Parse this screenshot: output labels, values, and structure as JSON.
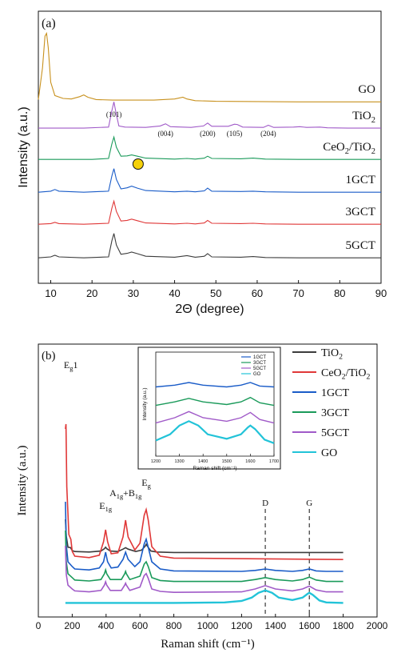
{
  "chart_data": [
    {
      "panel": "(a)",
      "type": "line",
      "xlabel": "2Θ (degree)",
      "ylabel": "Intensity (a.u.)",
      "xlim": [
        7,
        90
      ],
      "xticks": [
        10,
        20,
        30,
        40,
        50,
        60,
        70,
        80,
        90
      ],
      "peak_labels": [
        {
          "text": "(101)",
          "x": 25.3
        },
        {
          "text": "(004)",
          "x": 37.8
        },
        {
          "text": "(200)",
          "x": 48.0
        },
        {
          "text": "(105)",
          "x": 54.5
        },
        {
          "text": "(204)",
          "x": 62.7
        }
      ],
      "marker": {
        "symbol": "circle",
        "color": "#f5d10a",
        "x": 30.0,
        "series": "CeO2/TiO2"
      },
      "series": [
        {
          "name": "GO",
          "label_parts": [
            {
              "t": "GO"
            }
          ],
          "color": "#c8911e",
          "offset": 5,
          "x": [
            7,
            8,
            8.6,
            9,
            9.4,
            10,
            11,
            13,
            15,
            17,
            18,
            19,
            21,
            25,
            30,
            35,
            40,
            42,
            43,
            45,
            50,
            60,
            70,
            80,
            90
          ],
          "y": [
            0.05,
            0.6,
            1.15,
            1.2,
            0.95,
            0.35,
            0.12,
            0.07,
            0.06,
            0.1,
            0.13,
            0.09,
            0.05,
            0.04,
            0.04,
            0.04,
            0.06,
            0.09,
            0.06,
            0.03,
            0.02,
            0.015,
            0.01,
            0.01,
            0.01
          ]
        },
        {
          "name": "TiO2",
          "label_parts": [
            {
              "t": "TiO"
            },
            {
              "t": "2",
              "sub": true
            }
          ],
          "color": "#a05ac8",
          "offset": 4,
          "x": [
            7,
            12,
            18,
            24,
            24.8,
            25.3,
            25.8,
            26.5,
            28,
            33,
            36.5,
            37.8,
            39,
            44,
            47,
            48,
            49,
            53,
            54.5,
            55.2,
            56.5,
            61.5,
            62.7,
            64,
            68.8,
            70.3,
            72,
            75.2,
            77,
            82,
            90
          ],
          "y": [
            0.02,
            0.02,
            0.02,
            0.05,
            0.5,
            0.75,
            0.45,
            0.08,
            0.05,
            0.04,
            0.08,
            0.14,
            0.06,
            0.04,
            0.08,
            0.16,
            0.07,
            0.07,
            0.13,
            0.12,
            0.05,
            0.04,
            0.1,
            0.04,
            0.05,
            0.06,
            0.04,
            0.05,
            0.03,
            0.02,
            0.02
          ]
        },
        {
          "name": "CeO2/TiO2",
          "label_parts": [
            {
              "t": "CeO"
            },
            {
              "t": "2",
              "sub": true
            },
            {
              "t": "/TiO"
            },
            {
              "t": "2",
              "sub": true
            }
          ],
          "color": "#1a9a5a",
          "offset": 3,
          "x": [
            7,
            12,
            20,
            24,
            24.8,
            25.3,
            25.9,
            27,
            28.5,
            29.6,
            31,
            33,
            40,
            43,
            45,
            47.2,
            48,
            49,
            56,
            59,
            62,
            70,
            80,
            90
          ],
          "y": [
            0.02,
            0.02,
            0.02,
            0.05,
            0.5,
            0.72,
            0.4,
            0.12,
            0.13,
            0.16,
            0.12,
            0.06,
            0.03,
            0.05,
            0.03,
            0.06,
            0.12,
            0.05,
            0.04,
            0.06,
            0.03,
            0.02,
            0.02,
            0.02
          ]
        },
        {
          "name": "1GCT",
          "label_parts": [
            {
              "t": "1GCT"
            }
          ],
          "color": "#1a5cc8",
          "offset": 2,
          "x": [
            7,
            10,
            11,
            12,
            18,
            24,
            24.8,
            25.3,
            25.9,
            27,
            28.5,
            29.6,
            31,
            33,
            40,
            43,
            45,
            47.2,
            48,
            49,
            56,
            59,
            62,
            70,
            80,
            90
          ],
          "y": [
            0.02,
            0.05,
            0.1,
            0.05,
            0.02,
            0.05,
            0.5,
            0.72,
            0.4,
            0.12,
            0.15,
            0.2,
            0.14,
            0.07,
            0.03,
            0.05,
            0.03,
            0.06,
            0.14,
            0.05,
            0.04,
            0.05,
            0.03,
            0.02,
            0.02,
            0.02
          ]
        },
        {
          "name": "3GCT",
          "label_parts": [
            {
              "t": "3GCT"
            }
          ],
          "color": "#e03838",
          "offset": 1,
          "x": [
            7,
            10,
            11,
            12,
            18,
            24,
            24.8,
            25.3,
            25.9,
            27,
            28.5,
            29.6,
            31,
            33,
            40,
            43,
            45,
            47.2,
            48,
            49,
            56,
            59,
            62,
            70,
            80,
            90
          ],
          "y": [
            0.02,
            0.04,
            0.08,
            0.04,
            0.02,
            0.05,
            0.52,
            0.74,
            0.42,
            0.12,
            0.14,
            0.18,
            0.13,
            0.06,
            0.03,
            0.05,
            0.03,
            0.06,
            0.14,
            0.05,
            0.04,
            0.05,
            0.03,
            0.02,
            0.02,
            0.02
          ]
        },
        {
          "name": "5GCT",
          "label_parts": [
            {
              "t": "5GCT"
            }
          ],
          "color": "#3c3c3c",
          "offset": 0,
          "x": [
            7,
            10,
            11,
            12,
            18,
            24,
            24.8,
            25.3,
            25.9,
            27,
            28.5,
            29.6,
            31,
            33,
            40,
            43,
            45,
            47.2,
            48,
            49,
            56,
            59,
            62,
            70,
            80,
            90
          ],
          "y": [
            0.02,
            0.05,
            0.1,
            0.05,
            0.02,
            0.05,
            0.55,
            0.78,
            0.42,
            0.13,
            0.16,
            0.2,
            0.15,
            0.07,
            0.04,
            0.09,
            0.04,
            0.07,
            0.15,
            0.05,
            0.04,
            0.06,
            0.03,
            0.02,
            0.02,
            0.02
          ]
        }
      ]
    },
    {
      "panel": "(b)",
      "type": "line",
      "xlabel": "Raman shift (cm⁻¹)",
      "ylabel": "Intensity (a.u.)",
      "xlim": [
        0,
        2000
      ],
      "xticks": [
        0,
        200,
        400,
        600,
        800,
        1000,
        1200,
        1400,
        1600,
        1800,
        2000
      ],
      "peak_labels": [
        {
          "parts": [
            {
              "t": "E"
            },
            {
              "t": "g",
              "sub": true
            },
            {
              "t": "1"
            }
          ],
          "x": 160
        },
        {
          "parts": [
            {
              "t": "E"
            },
            {
              "t": "1g",
              "sub": true
            }
          ],
          "x": 397
        },
        {
          "parts": [
            {
              "t": "A"
            },
            {
              "t": "1g",
              "sub": true
            },
            {
              "t": "+B"
            },
            {
              "t": "1g",
              "sub": true
            }
          ],
          "x": 515
        },
        {
          "parts": [
            {
              "t": "E"
            },
            {
              "t": "g",
              "sub": true
            }
          ],
          "x": 637
        }
      ],
      "dashed_lines": [
        {
          "label": "D",
          "x": 1340
        },
        {
          "label": "G",
          "x": 1600
        }
      ],
      "series": [
        {
          "name": "TiO2",
          "label_parts": [
            {
              "t": "TiO"
            },
            {
              "t": "2",
              "sub": true
            }
          ],
          "color": "#3c3c3c",
          "offset": 5,
          "x": [
            160,
            165,
            175,
            190,
            200,
            215,
            300,
            370,
            390,
            397,
            404,
            425,
            470,
            500,
            515,
            530,
            575,
            610,
            630,
            637,
            644,
            665,
            700,
            800,
            1800
          ],
          "y": [
            0.7,
            0.35,
            0.12,
            0.11,
            0.05,
            0.03,
            0.02,
            0.04,
            0.09,
            0.12,
            0.09,
            0.04,
            0.03,
            0.08,
            0.11,
            0.08,
            0.03,
            0.06,
            0.14,
            0.18,
            0.14,
            0.04,
            0.02,
            0.01,
            0.01
          ]
        },
        {
          "name": "CeO2/TiO2",
          "label_parts": [
            {
              "t": "CeO"
            },
            {
              "t": "2",
              "sub": true
            },
            {
              "t": "/TiO"
            },
            {
              "t": "2",
              "sub": true
            }
          ],
          "color": "#e03838",
          "offset": 4,
          "x": [
            160,
            163,
            168,
            180,
            192,
            200,
            215,
            300,
            360,
            385,
            397,
            409,
            430,
            470,
            500,
            515,
            530,
            570,
            600,
            625,
            637,
            649,
            670,
            720,
            800,
            1800
          ],
          "y": [
            2.8,
            2.9,
            1.6,
            0.6,
            0.5,
            0.25,
            0.15,
            0.12,
            0.17,
            0.45,
            0.7,
            0.45,
            0.2,
            0.22,
            0.55,
            0.9,
            0.55,
            0.28,
            0.42,
            1.0,
            1.12,
            0.9,
            0.35,
            0.15,
            0.11,
            0.08
          ]
        },
        {
          "name": "1GCT",
          "label_parts": [
            {
              "t": "1GCT"
            }
          ],
          "color": "#1a5cc8",
          "offset": 3,
          "x": [
            160,
            165,
            175,
            200,
            215,
            300,
            360,
            385,
            397,
            409,
            430,
            470,
            500,
            515,
            530,
            570,
            600,
            625,
            637,
            649,
            670,
            720,
            800,
            1200,
            1280,
            1340,
            1400,
            1500,
            1560,
            1600,
            1640,
            1700,
            1800
          ],
          "y": [
            1.5,
            0.6,
            0.25,
            0.15,
            0.1,
            0.08,
            0.12,
            0.25,
            0.45,
            0.25,
            0.12,
            0.14,
            0.3,
            0.45,
            0.3,
            0.15,
            0.25,
            0.62,
            0.72,
            0.55,
            0.25,
            0.1,
            0.06,
            0.05,
            0.07,
            0.1,
            0.07,
            0.05,
            0.07,
            0.1,
            0.06,
            0.05,
            0.05
          ]
        },
        {
          "name": "3GCT",
          "label_parts": [
            {
              "t": "3GCT"
            }
          ],
          "color": "#1a9a5a",
          "offset": 2,
          "x": [
            160,
            165,
            175,
            200,
            215,
            300,
            370,
            390,
            397,
            404,
            425,
            490,
            510,
            515,
            520,
            540,
            600,
            625,
            637,
            649,
            670,
            720,
            800,
            1200,
            1280,
            1340,
            1400,
            1500,
            1560,
            1600,
            1640,
            1700,
            1800
          ],
          "y": [
            1.1,
            0.45,
            0.2,
            0.12,
            0.07,
            0.05,
            0.08,
            0.2,
            0.28,
            0.2,
            0.08,
            0.08,
            0.2,
            0.25,
            0.2,
            0.08,
            0.15,
            0.4,
            0.45,
            0.35,
            0.12,
            0.06,
            0.04,
            0.04,
            0.08,
            0.12,
            0.08,
            0.05,
            0.08,
            0.13,
            0.07,
            0.04,
            0.04
          ]
        },
        {
          "name": "5GCT",
          "label_parts": [
            {
              "t": "5GCT"
            }
          ],
          "color": "#a05ac8",
          "offset": 1,
          "x": [
            160,
            165,
            175,
            200,
            215,
            300,
            370,
            390,
            397,
            404,
            425,
            490,
            510,
            515,
            520,
            540,
            600,
            625,
            637,
            649,
            670,
            720,
            800,
            1200,
            1280,
            1340,
            1400,
            1500,
            1560,
            1600,
            1640,
            1700,
            1800
          ],
          "y": [
            1.0,
            0.4,
            0.18,
            0.1,
            0.06,
            0.04,
            0.07,
            0.18,
            0.25,
            0.18,
            0.07,
            0.07,
            0.18,
            0.22,
            0.18,
            0.07,
            0.14,
            0.38,
            0.42,
            0.32,
            0.1,
            0.05,
            0.03,
            0.04,
            0.1,
            0.17,
            0.1,
            0.06,
            0.1,
            0.16,
            0.08,
            0.04,
            0.04
          ]
        },
        {
          "name": "GO",
          "label_parts": [
            {
              "t": "GO"
            }
          ],
          "color": "#22c3d8",
          "offset": 0,
          "x": [
            160,
            800,
            1100,
            1200,
            1260,
            1300,
            1340,
            1380,
            1420,
            1500,
            1560,
            1590,
            1600,
            1620,
            1660,
            1700,
            1800
          ],
          "y": [
            0.01,
            0.01,
            0.02,
            0.05,
            0.12,
            0.22,
            0.27,
            0.22,
            0.12,
            0.07,
            0.12,
            0.2,
            0.22,
            0.18,
            0.06,
            0.02,
            0.01
          ]
        }
      ],
      "inset": {
        "type": "line",
        "xlabel": "Raman shift (cm⁻¹)",
        "ylabel": "Intensity (a.u.)",
        "xlim": [
          1200,
          1700
        ],
        "xticks": [
          1200,
          1300,
          1400,
          1500,
          1600,
          1700
        ],
        "series": [
          {
            "name": "1GCT",
            "color": "#1a5cc8",
            "offset": 3
          },
          {
            "name": "3GCT",
            "color": "#1a9a5a",
            "offset": 2
          },
          {
            "name": "5GCT",
            "color": "#a05ac8",
            "offset": 1
          },
          {
            "name": "GO",
            "color": "#22c3d8",
            "offset": 0
          }
        ]
      }
    }
  ]
}
